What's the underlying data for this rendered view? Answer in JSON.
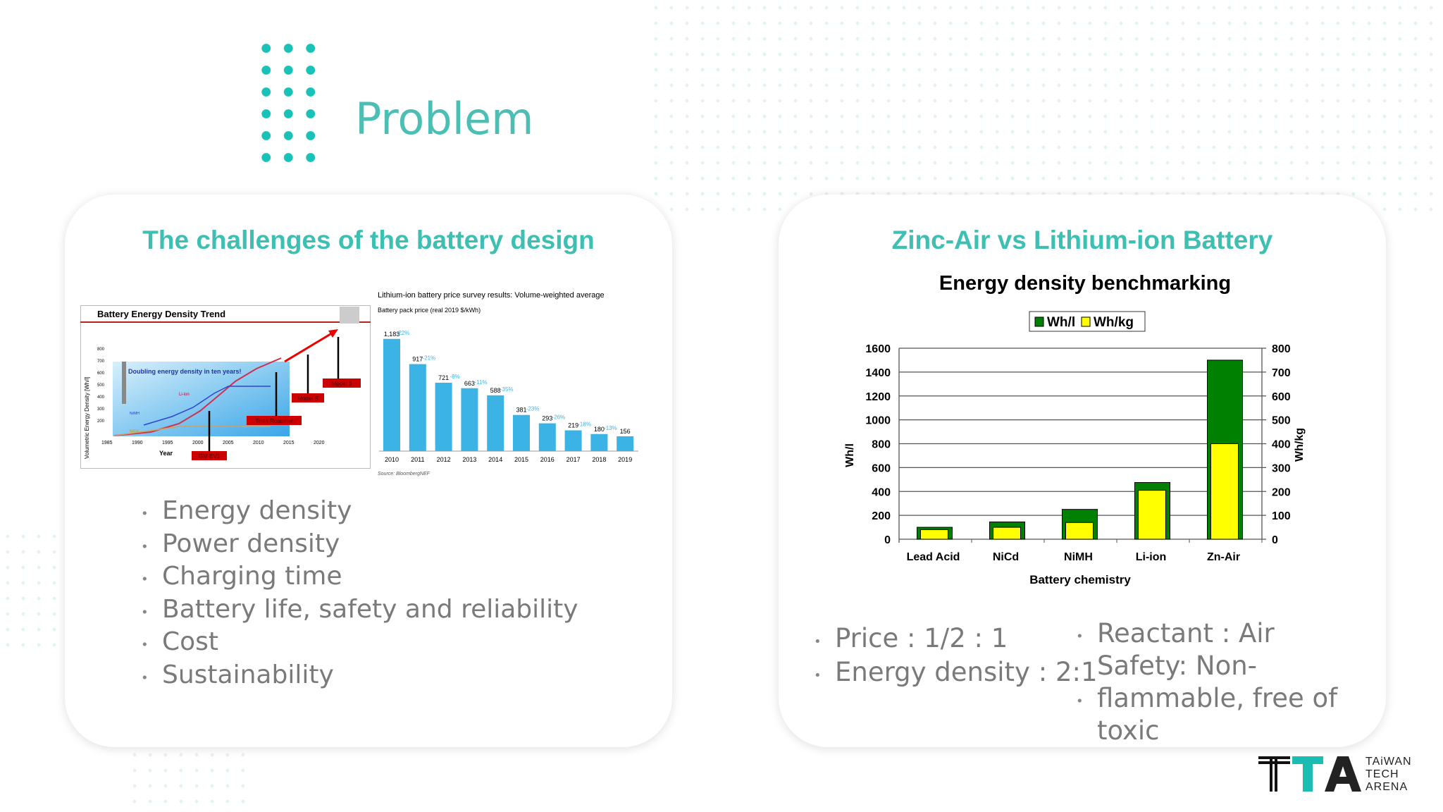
{
  "slide": {
    "title": "Problem"
  },
  "left_card": {
    "title": "The challenges of the battery design",
    "bullets": [
      "Energy density",
      "Power density",
      "Charging time",
      "Battery life, safety and reliability",
      "Cost",
      "Sustainability"
    ],
    "trend_image": {
      "title": "Battery Energy Density Trend",
      "ylabel": "Volumetric Energy Density [Wh/l]",
      "xlabel": "Year",
      "yticks": [
        "800",
        "700",
        "600",
        "500",
        "400",
        "300",
        "200"
      ],
      "xticks": [
        "1985",
        "1990",
        "1995",
        "2000",
        "2005",
        "2010",
        "2015",
        "2020"
      ],
      "headline": "Doubling energy density in ten years!",
      "series_labels": [
        "Li-ion",
        "Ni/MH",
        "Ni/Cd"
      ],
      "callouts": [
        "GM EV1",
        "Tesla Roadster",
        "Model S",
        "Model 3"
      ]
    },
    "price_image": {
      "title": "Lithium-ion battery price survey results: Volume-weighted average",
      "subtitle": "Battery pack price (real 2019 $/kWh)",
      "years": [
        "2010",
        "2011",
        "2012",
        "2013",
        "2014",
        "2015",
        "2016",
        "2017",
        "2018",
        "2019"
      ],
      "values": [
        1183,
        917,
        721,
        663,
        588,
        381,
        293,
        219,
        180,
        156
      ],
      "value_labels": [
        "1,183",
        "917",
        "721",
        "663",
        "588",
        "381",
        "293",
        "219",
        "180",
        "156"
      ],
      "changes": [
        "-22%",
        "-21%",
        "-8%",
        "-11%",
        "-35%",
        "-23%",
        "-26%",
        "-18%",
        "-13%"
      ],
      "source": "Source: BloombergNEF"
    }
  },
  "right_card": {
    "title": "Zinc-Air vs Lithium-ion Battery",
    "bullets_left": [
      "Price : 1/2 : 1",
      "Energy density : 2:1"
    ],
    "bullets_right": [
      "Reactant : Air",
      "Safety: Non-flammable, free of toxic"
    ]
  },
  "chart_data": {
    "type": "bar",
    "title": "Energy density benchmarking",
    "categories": [
      "Lead Acid",
      "NiCd",
      "NiMH",
      "Li-ion",
      "Zn-Air"
    ],
    "series": [
      {
        "name": "Wh/l",
        "axis": "left",
        "color": "#008000",
        "values": [
          100,
          145,
          250,
          475,
          1500
        ]
      },
      {
        "name": "Wh/kg",
        "axis": "right",
        "color": "#ffff00",
        "values": [
          40,
          50,
          70,
          205,
          400
        ]
      }
    ],
    "xlabel": "Battery chemistry",
    "ylabel": "Wh/l",
    "ylabel_right": "Wh/kg",
    "ylim": [
      0,
      1600
    ],
    "ylim_right": [
      0,
      800
    ],
    "yticks": [
      "0",
      "200",
      "400",
      "600",
      "800",
      "1000",
      "1200",
      "1400",
      "1600"
    ],
    "yticks_right": [
      "0",
      "100",
      "200",
      "300",
      "400",
      "500",
      "600",
      "700",
      "800"
    ],
    "grid": true,
    "legend": "top-center"
  },
  "logo": {
    "mark": "TTA",
    "text": [
      "TAiWAN",
      "TECH",
      "ARENA"
    ]
  },
  "colors": {
    "accent": "#3dbfb1",
    "bar_blue": "#3bb4e5",
    "red": "#cc0000"
  }
}
